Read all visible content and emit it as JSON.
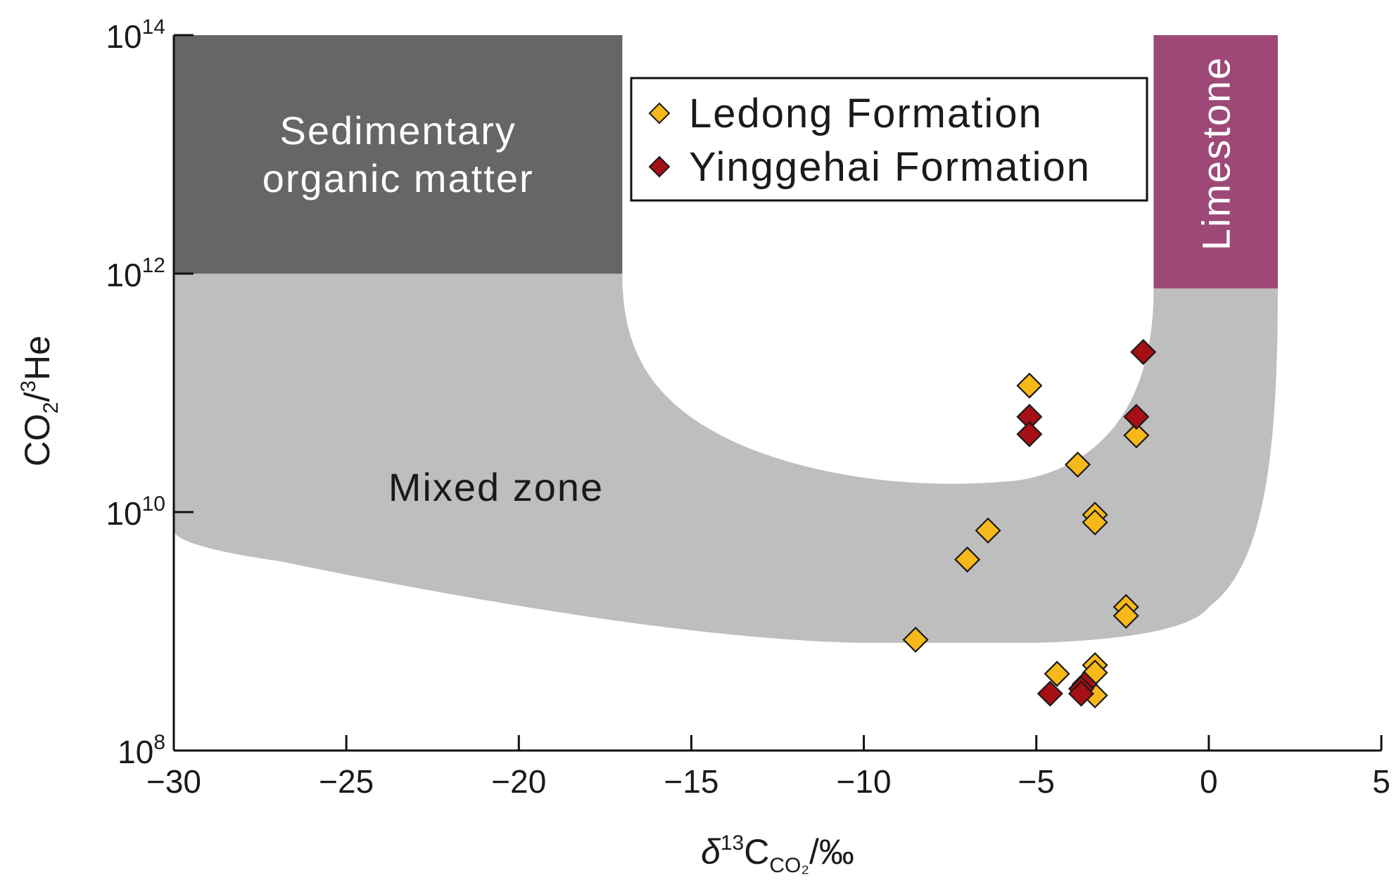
{
  "chart_data": {
    "type": "scatter",
    "x_scale": "linear",
    "y_scale": "log",
    "xlim": [
      -30,
      5
    ],
    "ylim": [
      100000000.0,
      100000000000000.0
    ],
    "x_ticks": [
      -30,
      -25,
      -20,
      -15,
      -10,
      -5,
      0,
      5
    ],
    "x_tick_labels": [
      "−30",
      "−25",
      "−20",
      "−15",
      "−10",
      "−5",
      "0",
      "5"
    ],
    "y_ticks": [
      {
        "value": 100000000.0,
        "base": "10",
        "exp": "8"
      },
      {
        "value": 10000000000.0,
        "base": "10",
        "exp": "10"
      },
      {
        "value": 1000000000000.0,
        "base": "10",
        "exp": "12"
      },
      {
        "value": 100000000000000.0,
        "base": "10",
        "exp": "14"
      }
    ],
    "xlabel": {
      "delta": "δ",
      "sup": "13",
      "main": "C",
      "sub": "CO₂",
      "unit": "/‰"
    },
    "ylabel": {
      "a": "CO",
      "sub": "2",
      "b": "/",
      "sup": "3",
      "c": "He"
    },
    "regions": [
      {
        "name": "Sedimentary organic matter",
        "lines": [
          "Sedimentary",
          "organic matter"
        ],
        "color": "#666666",
        "text_color": "#ffffff",
        "x_range": [
          -30,
          -17
        ],
        "y_range": [
          1000000000000.0,
          100000000000000.0
        ]
      },
      {
        "name": "Limestone",
        "lines": [
          "Limestone"
        ],
        "color": "#9e4877",
        "text_color": "#ffffff",
        "x_range": [
          -1.6,
          2
        ],
        "y_range": [
          750000000000.0,
          100000000000000.0
        ]
      },
      {
        "name": "Mixed zone",
        "lines": [
          "Mixed zone"
        ],
        "color": "#bebebe",
        "text_color": "#1a1a1a"
      }
    ],
    "legend": {
      "position": "top-right-inner"
    },
    "series": [
      {
        "name": "Ledong Formation",
        "color": "#f7b81a",
        "marker": "diamond",
        "points": [
          {
            "x": -5.2,
            "y": 115000000000.0
          },
          {
            "x": -2.1,
            "y": 44000000000.0
          },
          {
            "x": -3.8,
            "y": 25000000000.0
          },
          {
            "x": -3.3,
            "y": 9500000000.0
          },
          {
            "x": -3.3,
            "y": 8200000000.0
          },
          {
            "x": -6.4,
            "y": 7000000000.0
          },
          {
            "x": -7.0,
            "y": 4000000000.0
          },
          {
            "x": -2.4,
            "y": 1600000000.0
          },
          {
            "x": -2.4,
            "y": 1350000000.0
          },
          {
            "x": -8.5,
            "y": 850000000.0
          },
          {
            "x": -3.3,
            "y": 520000000.0
          },
          {
            "x": -3.3,
            "y": 450000000.0
          },
          {
            "x": -4.4,
            "y": 440000000.0
          },
          {
            "x": -3.6,
            "y": 350000000.0
          },
          {
            "x": -3.3,
            "y": 290000000.0
          }
        ]
      },
      {
        "name": "Yinggehai Formation",
        "color": "#a50f15",
        "marker": "diamond",
        "points": [
          {
            "x": -1.9,
            "y": 220000000000.0
          },
          {
            "x": -5.2,
            "y": 63000000000.0
          },
          {
            "x": -2.1,
            "y": 63000000000.0
          },
          {
            "x": -5.2,
            "y": 45000000000.0
          },
          {
            "x": -3.6,
            "y": 360000000.0
          },
          {
            "x": -3.7,
            "y": 330000000.0
          },
          {
            "x": -4.6,
            "y": 300000000.0
          },
          {
            "x": -3.7,
            "y": 300000000.0
          }
        ]
      }
    ]
  }
}
